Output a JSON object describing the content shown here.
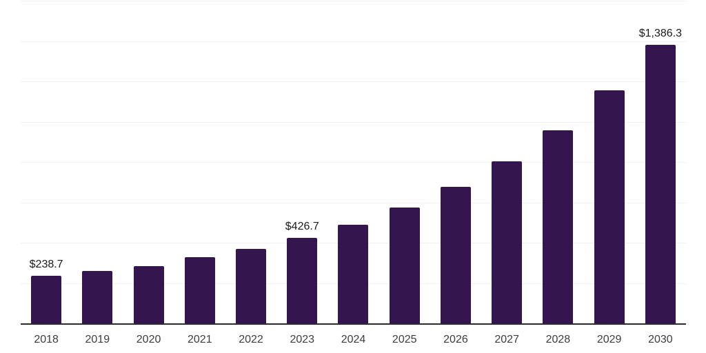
{
  "chart_data": {
    "type": "bar",
    "title": "",
    "xlabel": "",
    "ylabel": "",
    "categories": [
      "2018",
      "2019",
      "2020",
      "2021",
      "2022",
      "2023",
      "2024",
      "2025",
      "2026",
      "2027",
      "2028",
      "2029",
      "2030"
    ],
    "values": [
      238.7,
      262.0,
      287.5,
      332.0,
      373.0,
      426.7,
      493.0,
      577.0,
      680.0,
      808.0,
      962.0,
      1160.0,
      1386.3
    ],
    "point_labels": [
      "$238.7",
      "",
      "",
      "",
      "",
      "$426.7",
      "",
      "",
      "",
      "",
      "",
      "",
      "$1,386.3"
    ],
    "ylim": [
      0,
      1600
    ],
    "gridline_step": 200,
    "grid": "horizontal-only",
    "y_tick_labels_visible": false,
    "legend": "none"
  },
  "colors": {
    "background": "#ffffff",
    "bar": "#341550",
    "gridline": "#f0f0f0",
    "axis_line": "#2b2b2b",
    "value_label": "#1a1a1a",
    "tick_label": "#3d3d3d"
  }
}
